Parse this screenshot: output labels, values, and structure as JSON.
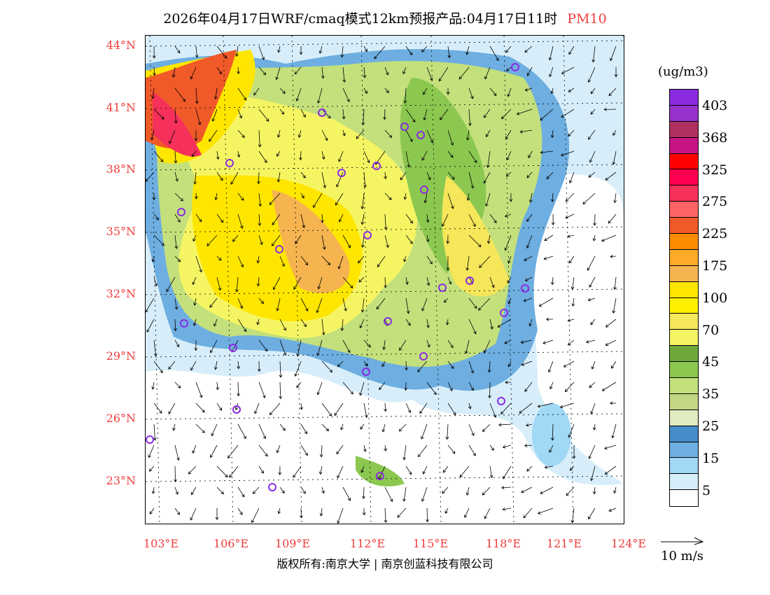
{
  "title": {
    "main": "2026年04月17日WRF/cmaq模式12km预报产品:04月17日11时",
    "species": "PM10"
  },
  "lat_labels": [
    "44°N",
    "41°N",
    "38°N",
    "35°N",
    "32°N",
    "29°N",
    "26°N",
    "23°N"
  ],
  "lon_labels": [
    "103°E",
    "106°E",
    "109°E",
    "112°E",
    "115°E",
    "118°E",
    "121°E",
    "124°E"
  ],
  "legend": {
    "unit": "(ug/m3)",
    "colors": [
      "#8a2be2",
      "#9932cc",
      "#b03060",
      "#c71585",
      "#ff0000",
      "#ff0050",
      "#f5305a",
      "#ff6464",
      "#f05a28",
      "#ff8c00",
      "#ffaa28",
      "#f5b450",
      "#ffe600",
      "#fff000",
      "#f5e65a",
      "#f5f564",
      "#6ea83c",
      "#8cc850",
      "#c3e07c",
      "#c3d782",
      "#e0ebc0",
      "#468cc8",
      "#6eaee0",
      "#a0d8f5",
      "#d7eefa",
      "#ffffff"
    ],
    "labels": [
      "403",
      "368",
      "325",
      "275",
      "225",
      "175",
      "100",
      "70",
      "45",
      "35",
      "25",
      "15",
      "5"
    ]
  },
  "wind_reference": "10 m/s",
  "footer": "版权所有:南京大学 | 南京创蓝科技有限公司"
}
